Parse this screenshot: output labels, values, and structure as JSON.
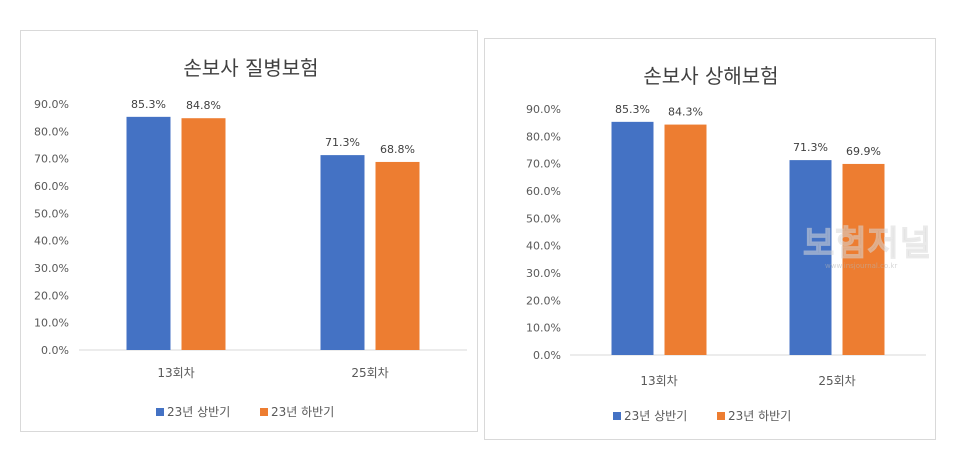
{
  "chart_data": [
    {
      "type": "bar",
      "title": "손보사 질병보험",
      "categories": [
        "13회차",
        "25회차"
      ],
      "series": [
        {
          "name": "23년 상반기",
          "values": [
            85.3,
            71.3
          ],
          "color": "#4472C4"
        },
        {
          "name": "23년 하반기",
          "values": [
            84.8,
            68.8
          ],
          "color": "#ED7D31"
        }
      ],
      "data_labels": [
        [
          "85.3%",
          "71.3%"
        ],
        [
          "84.8%",
          "68.8%"
        ]
      ],
      "y_ticks": [
        "0.0%",
        "10.0%",
        "20.0%",
        "30.0%",
        "40.0%",
        "50.0%",
        "60.0%",
        "70.0%",
        "80.0%",
        "90.0%"
      ],
      "ylim": [
        0,
        90
      ],
      "grid": false,
      "legend": "bottom"
    },
    {
      "type": "bar",
      "title": "손보사 상해보험",
      "categories": [
        "13회차",
        "25회차"
      ],
      "series": [
        {
          "name": "23년 상반기",
          "values": [
            85.3,
            71.3
          ],
          "color": "#4472C4"
        },
        {
          "name": "23년 하반기",
          "values": [
            84.3,
            69.9
          ],
          "color": "#ED7D31"
        }
      ],
      "data_labels": [
        [
          "85.3%",
          "71.3%"
        ],
        [
          "84.3%",
          "69.9%"
        ]
      ],
      "y_ticks": [
        "0.0%",
        "10.0%",
        "20.0%",
        "30.0%",
        "40.0%",
        "50.0%",
        "60.0%",
        "70.0%",
        "80.0%",
        "90.0%"
      ],
      "ylim": [
        0,
        90
      ],
      "grid": false,
      "legend": "bottom"
    }
  ],
  "watermark": {
    "text": "보험저널",
    "sub": "www.insjournal.co.kr"
  }
}
